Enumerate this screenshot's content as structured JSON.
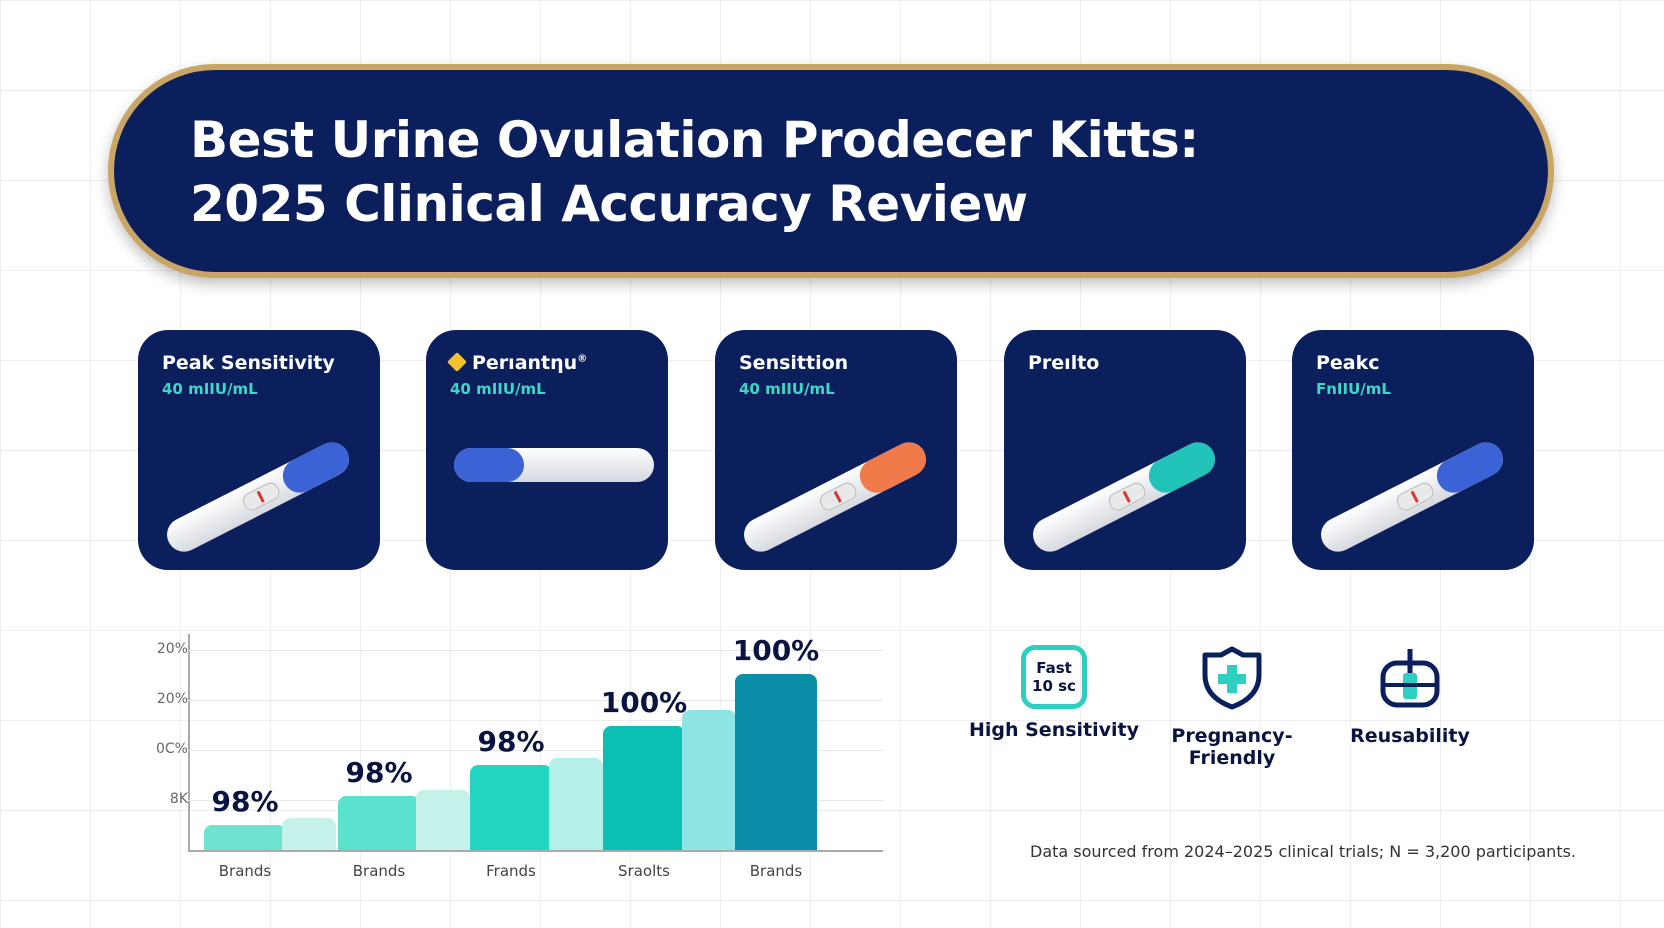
{
  "title": {
    "line1": "Best Urine Ovulation Prodecer Kitts:",
    "line2": "2025 Clinical Accuracy Review"
  },
  "colors": {
    "navy": "#0b1f5c",
    "gold": "#c9a566",
    "teal": "#3fd6c8"
  },
  "cards": [
    {
      "name": "Peak Sensitivity",
      "sensitivity": "40 mIIU/mL",
      "cap_color": "#3b63d6"
    },
    {
      "name": "Perıantƞu",
      "badge": "®",
      "sensitivity": "40 mIIU/mL",
      "cap_color": "#3b63d6",
      "logo_icon": "diamond-icon"
    },
    {
      "name": "Sensittion",
      "sensitivity": "40 mIIU/mL",
      "cap_color": "#f07a4a"
    },
    {
      "name": "Preılto",
      "sensitivity": "",
      "cap_color": "#22c3b9"
    },
    {
      "name": "Peakc",
      "sensitivity": "FnIIU/mL",
      "cap_color": "#3b63d6"
    }
  ],
  "chart_data": {
    "type": "bar",
    "y_tick_labels": [
      "8K",
      "0C%",
      "20%",
      "20%"
    ],
    "ylim": [
      0,
      4
    ],
    "grid": true,
    "values": [
      0.5,
      0.64,
      1.08,
      1.2,
      1.7,
      1.84,
      2.48,
      2.8,
      3.52
    ],
    "data_labels": [
      "98%",
      "",
      "98%",
      "",
      "98%",
      "",
      "100%",
      "",
      "100%"
    ],
    "categories": [
      "Brands",
      "",
      "Brands",
      "",
      "Frands",
      "",
      "Sraolts",
      "",
      "Brands"
    ],
    "colors": [
      "#6ee3d1",
      "#c4f2ea",
      "#5ae2cf",
      "#c4f2ea",
      "#22d6c1",
      "#b4f0e7",
      "#0cbfb5",
      "#8fe4e4",
      "#0a8ea8"
    ]
  },
  "features": [
    {
      "icon": "fast-timer-icon",
      "icon_text1": "Fast",
      "icon_text2": "10 sc",
      "label": "High Sensitivity"
    },
    {
      "icon": "shield-plus-icon",
      "label": "Pregnancy-\nFriendly"
    },
    {
      "icon": "reusable-device-icon",
      "label": "Reusability"
    }
  ],
  "footer": "Data sourced from 2024–2025 clinical trials; N = 3,200 participants."
}
